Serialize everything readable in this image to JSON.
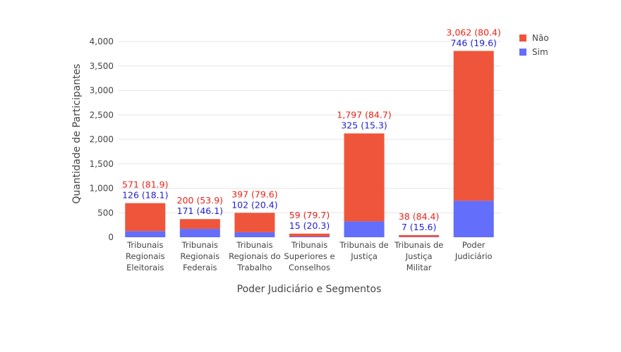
{
  "chart_data": {
    "type": "bar",
    "stacked": true,
    "categories": [
      [
        "Tribunais",
        "Regionais",
        "Eleitorais"
      ],
      [
        "Tribunais",
        "Regionais",
        "Federais"
      ],
      [
        "Tribunais",
        "Regionais do",
        "Trabalho"
      ],
      [
        "Tribunais",
        "Superiores e",
        "Conselhos"
      ],
      [
        "Tribunais de",
        "Justiça"
      ],
      [
        "Tribunais de",
        "Justiça",
        "Militar"
      ],
      [
        "Poder",
        "Judiciário"
      ]
    ],
    "series": [
      {
        "name": "Sim",
        "color": "#636efa",
        "values": [
          126,
          171,
          102,
          15,
          325,
          7,
          746
        ],
        "labels": [
          "126 (18.1)",
          "171 (46.1)",
          "102 (20.4)",
          "15 (20.3)",
          "325 (15.3)",
          "7 (15.6)",
          "746 (19.6)"
        ],
        "label_color": "#1f1fd1"
      },
      {
        "name": "Não",
        "color": "#ef553b",
        "values": [
          571,
          200,
          397,
          59,
          1797,
          38,
          3062
        ],
        "labels": [
          "571 (81.9)",
          "200 (53.9)",
          "397 (79.6)",
          "59 (79.7)",
          "1,797 (84.7)",
          "38 (84.4)",
          "3,062 (80.4)"
        ],
        "label_color": "#e8231a"
      }
    ],
    "xlabel": "Poder Judiciário e Segmentos",
    "ylabel": "Quantidade de Participantes",
    "ylim": [
      0,
      4200
    ],
    "yticks": [
      0,
      500,
      1000,
      1500,
      2000,
      2500,
      3000,
      3500,
      4000
    ],
    "ytick_labels": [
      "0",
      "500",
      "1,000",
      "1,500",
      "2,000",
      "2,500",
      "3,000",
      "3,500",
      "4,000"
    ],
    "legend_order": [
      "Não",
      "Sim"
    ],
    "legend_position": "top-right",
    "grid": true
  }
}
